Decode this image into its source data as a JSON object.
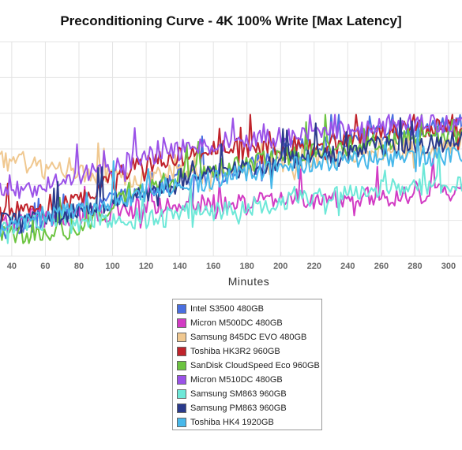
{
  "chart_data": {
    "type": "line",
    "title": "Preconditioning Curve - 4K 100% Write [Max Latency]",
    "xlabel": "Minutes",
    "ylabel": "",
    "x_ticks": [
      40,
      60,
      80,
      100,
      120,
      140,
      160,
      180,
      200,
      220,
      240,
      260,
      280,
      300
    ],
    "xlim": [
      33,
      308
    ],
    "ylim": [
      0,
      1
    ],
    "grid": true,
    "legend_position": "bottom",
    "series": [
      {
        "name": "Intel S3500 480GB",
        "color": "#4a6fe0",
        "values": [
          0.12,
          0.15,
          0.2,
          0.25,
          0.28,
          0.33,
          0.36,
          0.4,
          0.45,
          0.5,
          0.52,
          0.56,
          0.58,
          0.6,
          0.62
        ]
      },
      {
        "name": "Micron M500DC 480GB",
        "color": "#d23cc4",
        "values": [
          0.14,
          0.18,
          0.18,
          0.2,
          0.22,
          0.25,
          0.24,
          0.25,
          0.26,
          0.27,
          0.26,
          0.28,
          0.28,
          0.29,
          0.3
        ]
      },
      {
        "name": "Samsung 845DC EVO 480GB",
        "color": "#f0c890",
        "values": [
          0.45,
          0.42,
          0.4,
          0.38,
          0.36,
          0.38,
          0.38,
          0.4,
          0.42,
          0.44,
          0.46,
          0.48,
          0.5,
          0.5,
          0.52
        ]
      },
      {
        "name": "Toshiba HK3R2 960GB",
        "color": "#c0232b",
        "values": [
          0.2,
          0.22,
          0.25,
          0.32,
          0.42,
          0.45,
          0.48,
          0.5,
          0.5,
          0.52,
          0.55,
          0.56,
          0.58,
          0.6,
          0.6
        ]
      },
      {
        "name": "SanDisk CloudSpeed Eco 960GB",
        "color": "#6cc440",
        "values": [
          0.1,
          0.1,
          0.12,
          0.18,
          0.3,
          0.35,
          0.4,
          0.42,
          0.45,
          0.47,
          0.5,
          0.52,
          0.55,
          0.56,
          0.58
        ]
      },
      {
        "name": "Micron M510DC 480GB",
        "color": "#9b52e8",
        "values": [
          0.3,
          0.32,
          0.35,
          0.4,
          0.45,
          0.48,
          0.5,
          0.52,
          0.55,
          0.56,
          0.58,
          0.6,
          0.6,
          0.62,
          0.62
        ]
      },
      {
        "name": "Samsung SM863 960GB",
        "color": "#6ee8d8",
        "values": [
          0.14,
          0.15,
          0.15,
          0.16,
          0.17,
          0.18,
          0.2,
          0.22,
          0.24,
          0.26,
          0.28,
          0.3,
          0.32,
          0.33,
          0.34
        ]
      },
      {
        "name": "Samsung PM863 960GB",
        "color": "#2a3a8c",
        "values": [
          0.16,
          0.18,
          0.2,
          0.24,
          0.28,
          0.32,
          0.36,
          0.4,
          0.42,
          0.45,
          0.47,
          0.5,
          0.52,
          0.52,
          0.54
        ]
      },
      {
        "name": "Toshiba HK4 1920GB",
        "color": "#48b8ea",
        "values": [
          0.12,
          0.16,
          0.2,
          0.24,
          0.28,
          0.32,
          0.34,
          0.38,
          0.4,
          0.42,
          0.44,
          0.45,
          0.46,
          0.46,
          0.48
        ]
      }
    ]
  }
}
